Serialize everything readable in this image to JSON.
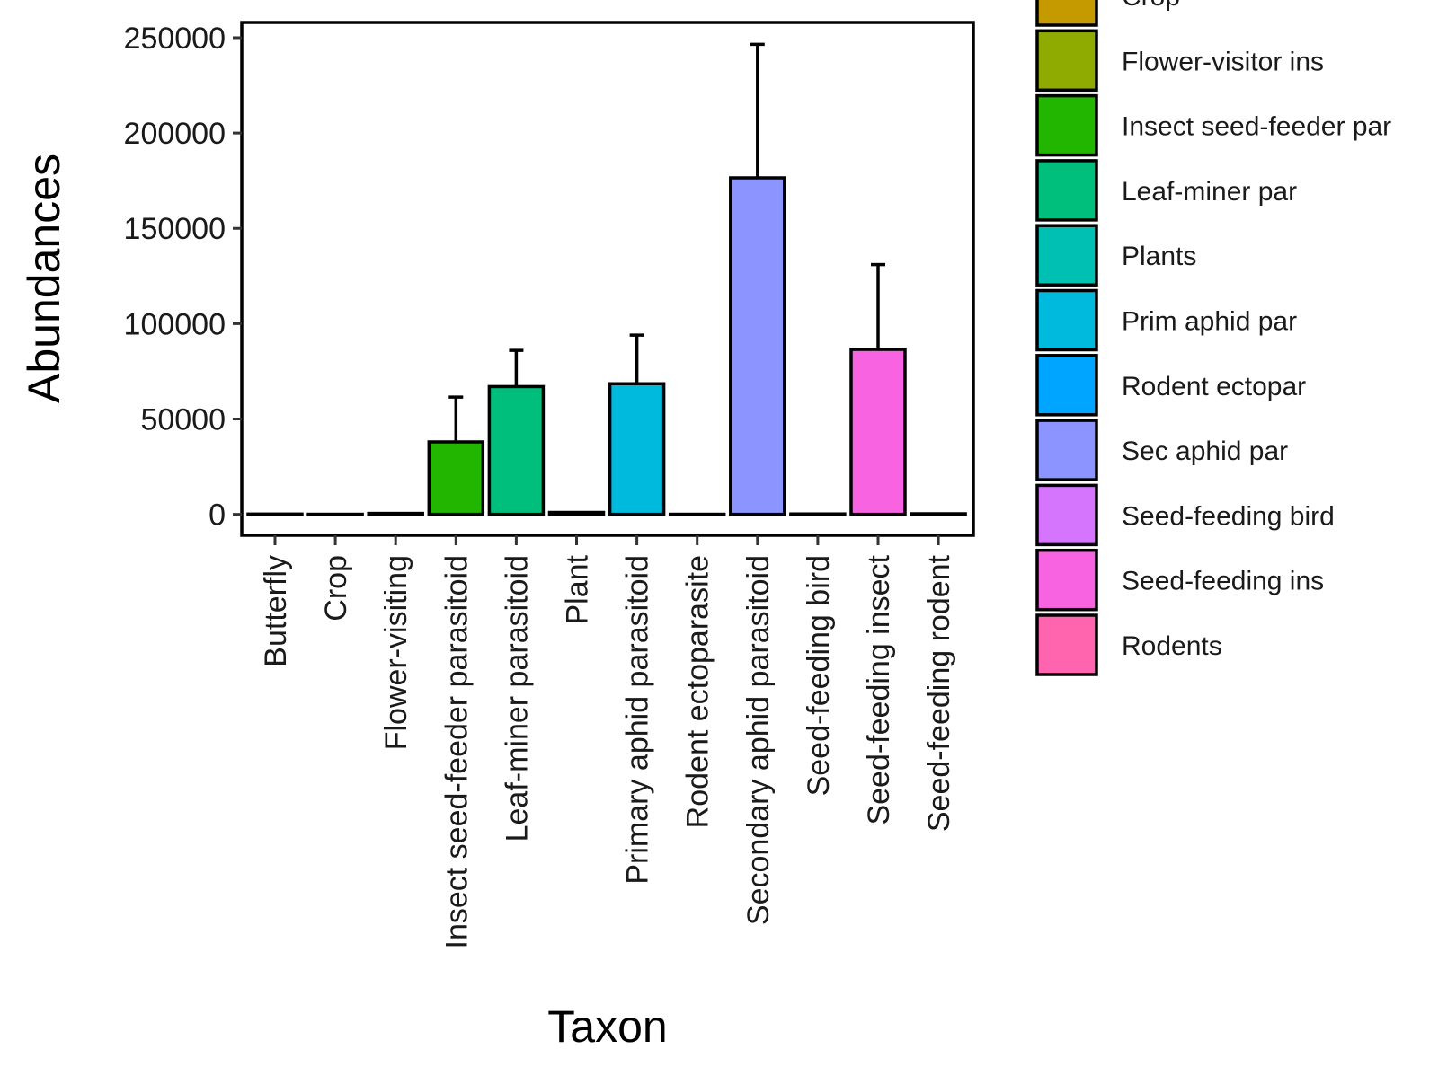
{
  "chart_data": {
    "type": "bar",
    "xlabel": "Taxon",
    "ylabel": "Abundances",
    "ylim": [
      -11000,
      258000
    ],
    "yticks": [
      0,
      50000,
      100000,
      150000,
      200000,
      250000
    ],
    "ytick_labels": [
      "0",
      "50000",
      "100000",
      "150000",
      "200000",
      "250000"
    ],
    "grid": false,
    "legend_position": "right",
    "categories": [
      "Butterfly",
      "Crop",
      "Flower-visiting",
      "Insect seed-feeder parasitoid",
      "Leaf-miner parasitoid",
      "Plant",
      "Primary aphid parasitoid",
      "Rodent ectoparasite",
      "Secondary aphid parasitoid",
      "Seed-feeding bird",
      "Seed-feeding insect",
      "Seed-feeding rodent"
    ],
    "values": [
      150,
      50,
      500,
      38000,
      67000,
      1000,
      68500,
      50,
      176500,
      200,
      86500,
      300
    ],
    "error_upper": [
      300,
      100,
      800,
      61500,
      86000,
      1800,
      94000,
      100,
      246500,
      400,
      131000,
      500
    ],
    "bar_colors": [
      "#F8766D",
      "#C49A00",
      "#8FAA00",
      "#22B600",
      "#00BF7D",
      "#00BFB3",
      "#00BADE",
      "#00A5FF",
      "#8C94FF",
      "#D575FE",
      "#F763E0",
      "#FF65AE"
    ],
    "legend": [
      {
        "label": "Crop",
        "color": "#C49A00"
      },
      {
        "label": "Flower-visitor ins",
        "color": "#8FAA00"
      },
      {
        "label": "Insect seed-feeder par",
        "color": "#22B600"
      },
      {
        "label": "Leaf-miner par",
        "color": "#00BF7D"
      },
      {
        "label": "Plants",
        "color": "#00BFB3"
      },
      {
        "label": "Prim aphid par",
        "color": "#00BADE"
      },
      {
        "label": "Rodent ectopar",
        "color": "#00A5FF"
      },
      {
        "label": "Sec aphid par",
        "color": "#8C94FF"
      },
      {
        "label": "Seed-feeding bird",
        "color": "#D575FE"
      },
      {
        "label": "Seed-feeding ins",
        "color": "#F763E0"
      },
      {
        "label": "Rodents",
        "color": "#FF65AE"
      }
    ]
  }
}
